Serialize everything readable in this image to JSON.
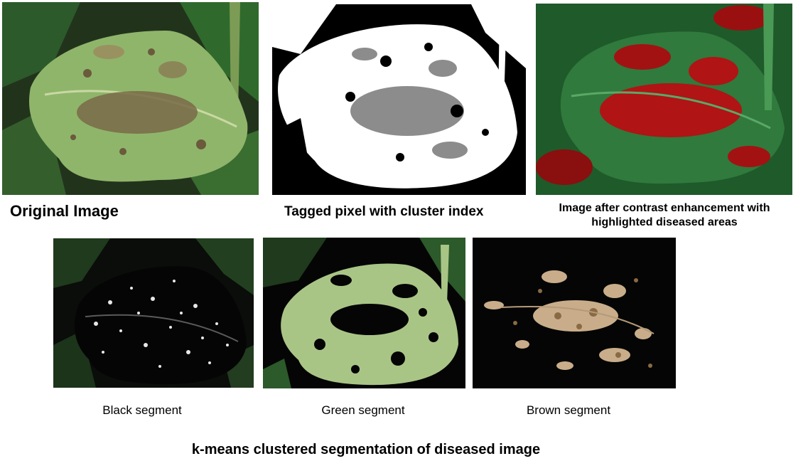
{
  "figure": {
    "top_row": {
      "original": {
        "label": "Original Image"
      },
      "tagged": {
        "label": "Tagged pixel with cluster index"
      },
      "contrast": {
        "label": "Image after contrast enhancement with highlighted diseased areas"
      }
    },
    "segments": {
      "black": {
        "label": "Black segment"
      },
      "green": {
        "label": "Green segment"
      },
      "brown": {
        "label": "Brown segment"
      }
    },
    "caption": "k-means clustered segmentation of diseased image"
  },
  "colors": {
    "leaf_green": "#8fb56a",
    "dark_foliage": "#1f3a1c",
    "disease_brown": "#8a6a45",
    "tag_gray": "#8c8c8c",
    "highlight_red": "#b01414",
    "enhanced_green": "#2f7a3c",
    "segment_tan": "#c9ad8a",
    "segment_green": "#a9c586"
  }
}
